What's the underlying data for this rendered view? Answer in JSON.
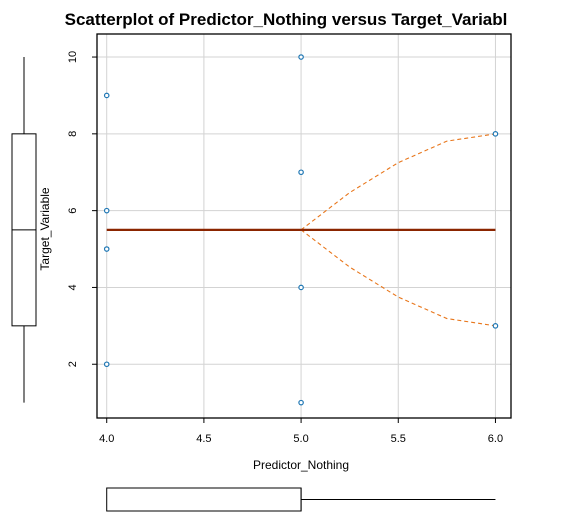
{
  "chart_data": {
    "type": "scatter",
    "title": "Scatterplot of Predictor_Nothing versus Target_Variabl",
    "xlabel": "Predictor_Nothing",
    "ylabel": "Target_Variable",
    "xlim": [
      3.95,
      6.08
    ],
    "ylim": [
      0.6,
      10.6
    ],
    "x_ticks": [
      4.0,
      4.5,
      5.0,
      5.5,
      6.0
    ],
    "x_tick_labels": [
      "4.0",
      "4.5",
      "5.0",
      "5.5",
      "6.0"
    ],
    "y_ticks": [
      2,
      4,
      6,
      8,
      10
    ],
    "y_tick_labels": [
      "2",
      "4",
      "6",
      "8",
      "10"
    ],
    "grid": true,
    "points": [
      {
        "x": 4,
        "y": 9
      },
      {
        "x": 4,
        "y": 6
      },
      {
        "x": 4,
        "y": 5
      },
      {
        "x": 4,
        "y": 2
      },
      {
        "x": 5,
        "y": 10
      },
      {
        "x": 5,
        "y": 7
      },
      {
        "x": 5,
        "y": 4
      },
      {
        "x": 5,
        "y": 1
      },
      {
        "x": 6,
        "y": 8
      },
      {
        "x": 6,
        "y": 3
      }
    ],
    "fit_line": {
      "x": [
        4,
        6
      ],
      "y": [
        5.5,
        5.5
      ]
    },
    "spread_upper": {
      "x": [
        5,
        5.25,
        5.5,
        5.75,
        6
      ],
      "y": [
        5.5,
        6.47,
        7.25,
        7.81,
        8.0
      ]
    },
    "spread_lower": {
      "x": [
        5,
        5.25,
        5.5,
        5.75,
        6
      ],
      "y": [
        5.5,
        4.53,
        3.75,
        3.19,
        3.0
      ]
    },
    "y_boxplot": {
      "min": 1,
      "q1": 3,
      "median": 5.5,
      "q3": 8,
      "max": 10
    },
    "x_boxplot": {
      "min": 4,
      "q1": 4,
      "median": 5,
      "q3": 5,
      "max": 6
    },
    "colors": {
      "points": "#1f77b4",
      "fit_line": "#8b2500",
      "spread": "#e8761b",
      "grid": "#d3d3d3",
      "frame": "#000000"
    }
  }
}
